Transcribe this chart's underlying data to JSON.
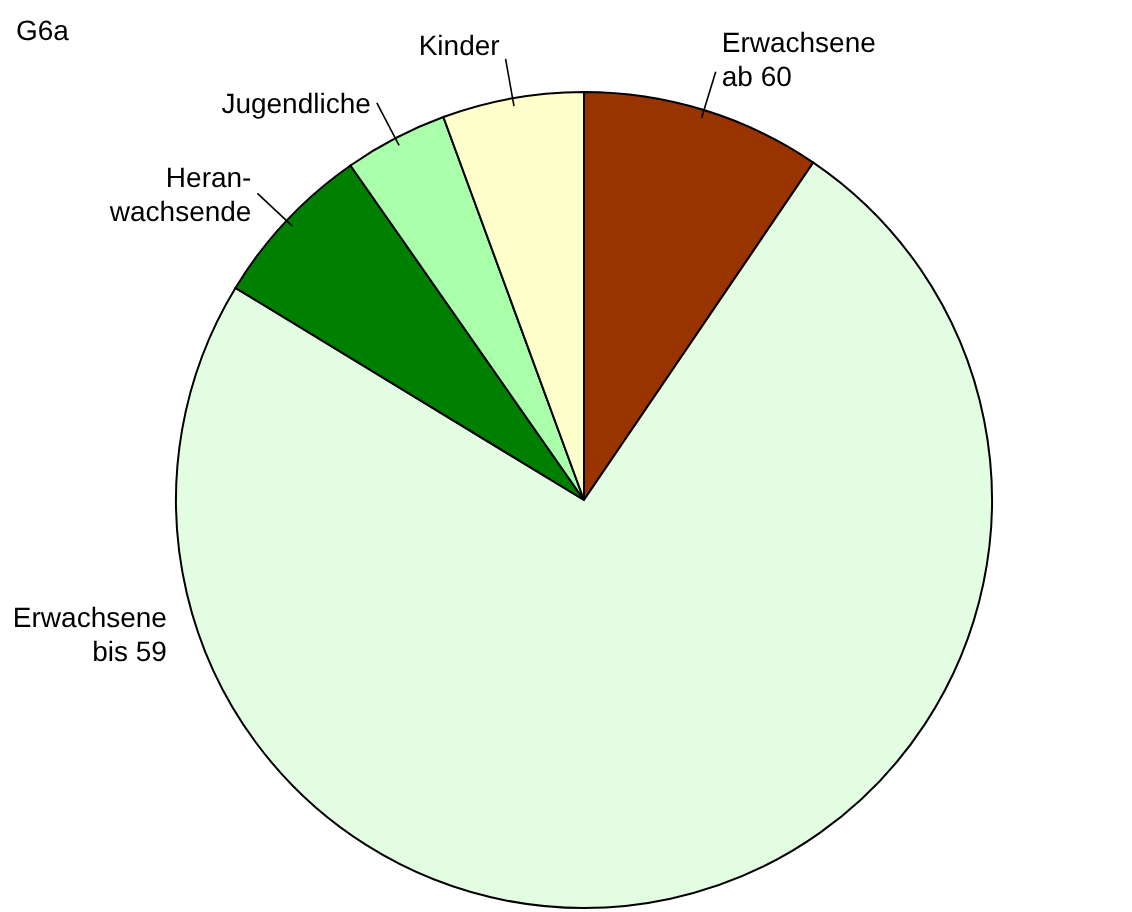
{
  "chart_data": {
    "type": "pie",
    "title": "G6a",
    "categories": [
      "Erwachsene ab 60",
      "Erwachsene bis 59",
      "Heran-wachsende",
      "Jugendliche",
      "Kinder"
    ],
    "values": [
      9.5,
      74.2,
      6.6,
      4.1,
      5.6
    ],
    "colors": [
      "#993300",
      "#e3fde3",
      "#008000",
      "#aaffaa",
      "#ffffcc"
    ],
    "legend": false
  }
}
